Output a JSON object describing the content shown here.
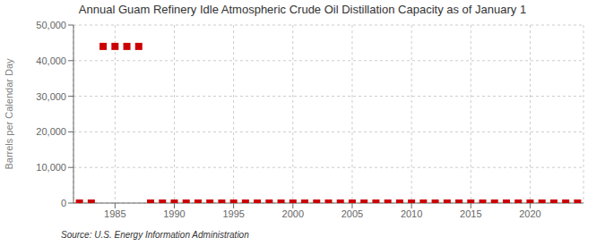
{
  "chart_data": {
    "type": "scatter",
    "title": "Annual Guam Refinery Idle Atmospheric Crude Oil Distillation Capacity as of January 1",
    "y_label": "Barrels per Calendar Day",
    "annotations": [
      "Source: U.S. Energy Information Administration"
    ],
    "x": [
      1982,
      1983,
      1984,
      1985,
      1986,
      1987,
      1988,
      1989,
      1990,
      1991,
      1992,
      1993,
      1994,
      1995,
      1996,
      1997,
      1998,
      1999,
      2000,
      2001,
      2002,
      2003,
      2004,
      2005,
      2006,
      2007,
      2008,
      2009,
      2010,
      2011,
      2012,
      2013,
      2014,
      2015,
      2016,
      2017,
      2018,
      2019,
      2020,
      2021,
      2022,
      2023,
      2024
    ],
    "values": [
      0,
      0,
      44000,
      44000,
      44000,
      44000,
      0,
      0,
      0,
      0,
      0,
      0,
      0,
      0,
      0,
      0,
      0,
      0,
      0,
      0,
      0,
      0,
      0,
      0,
      0,
      0,
      0,
      0,
      0,
      0,
      0,
      0,
      0,
      0,
      0,
      0,
      0,
      0,
      0,
      0,
      0,
      0,
      0
    ],
    "color": "#cc0000",
    "marker": "square",
    "xlim": [
      1981.5,
      2024.5
    ],
    "xticks": [
      1985,
      1990,
      1995,
      2000,
      2005,
      2010,
      2015,
      2020
    ],
    "ylim": [
      0,
      50000
    ],
    "yticks": [
      0,
      {
        "value": 10000,
        "label": "10,000"
      },
      {
        "value": 20000,
        "label": "20,000"
      },
      {
        "value": 30000,
        "label": "30,000"
      },
      {
        "value": 40000,
        "label": "40,000"
      },
      {
        "value": 50000,
        "label": "50,000"
      }
    ],
    "grid": true
  }
}
